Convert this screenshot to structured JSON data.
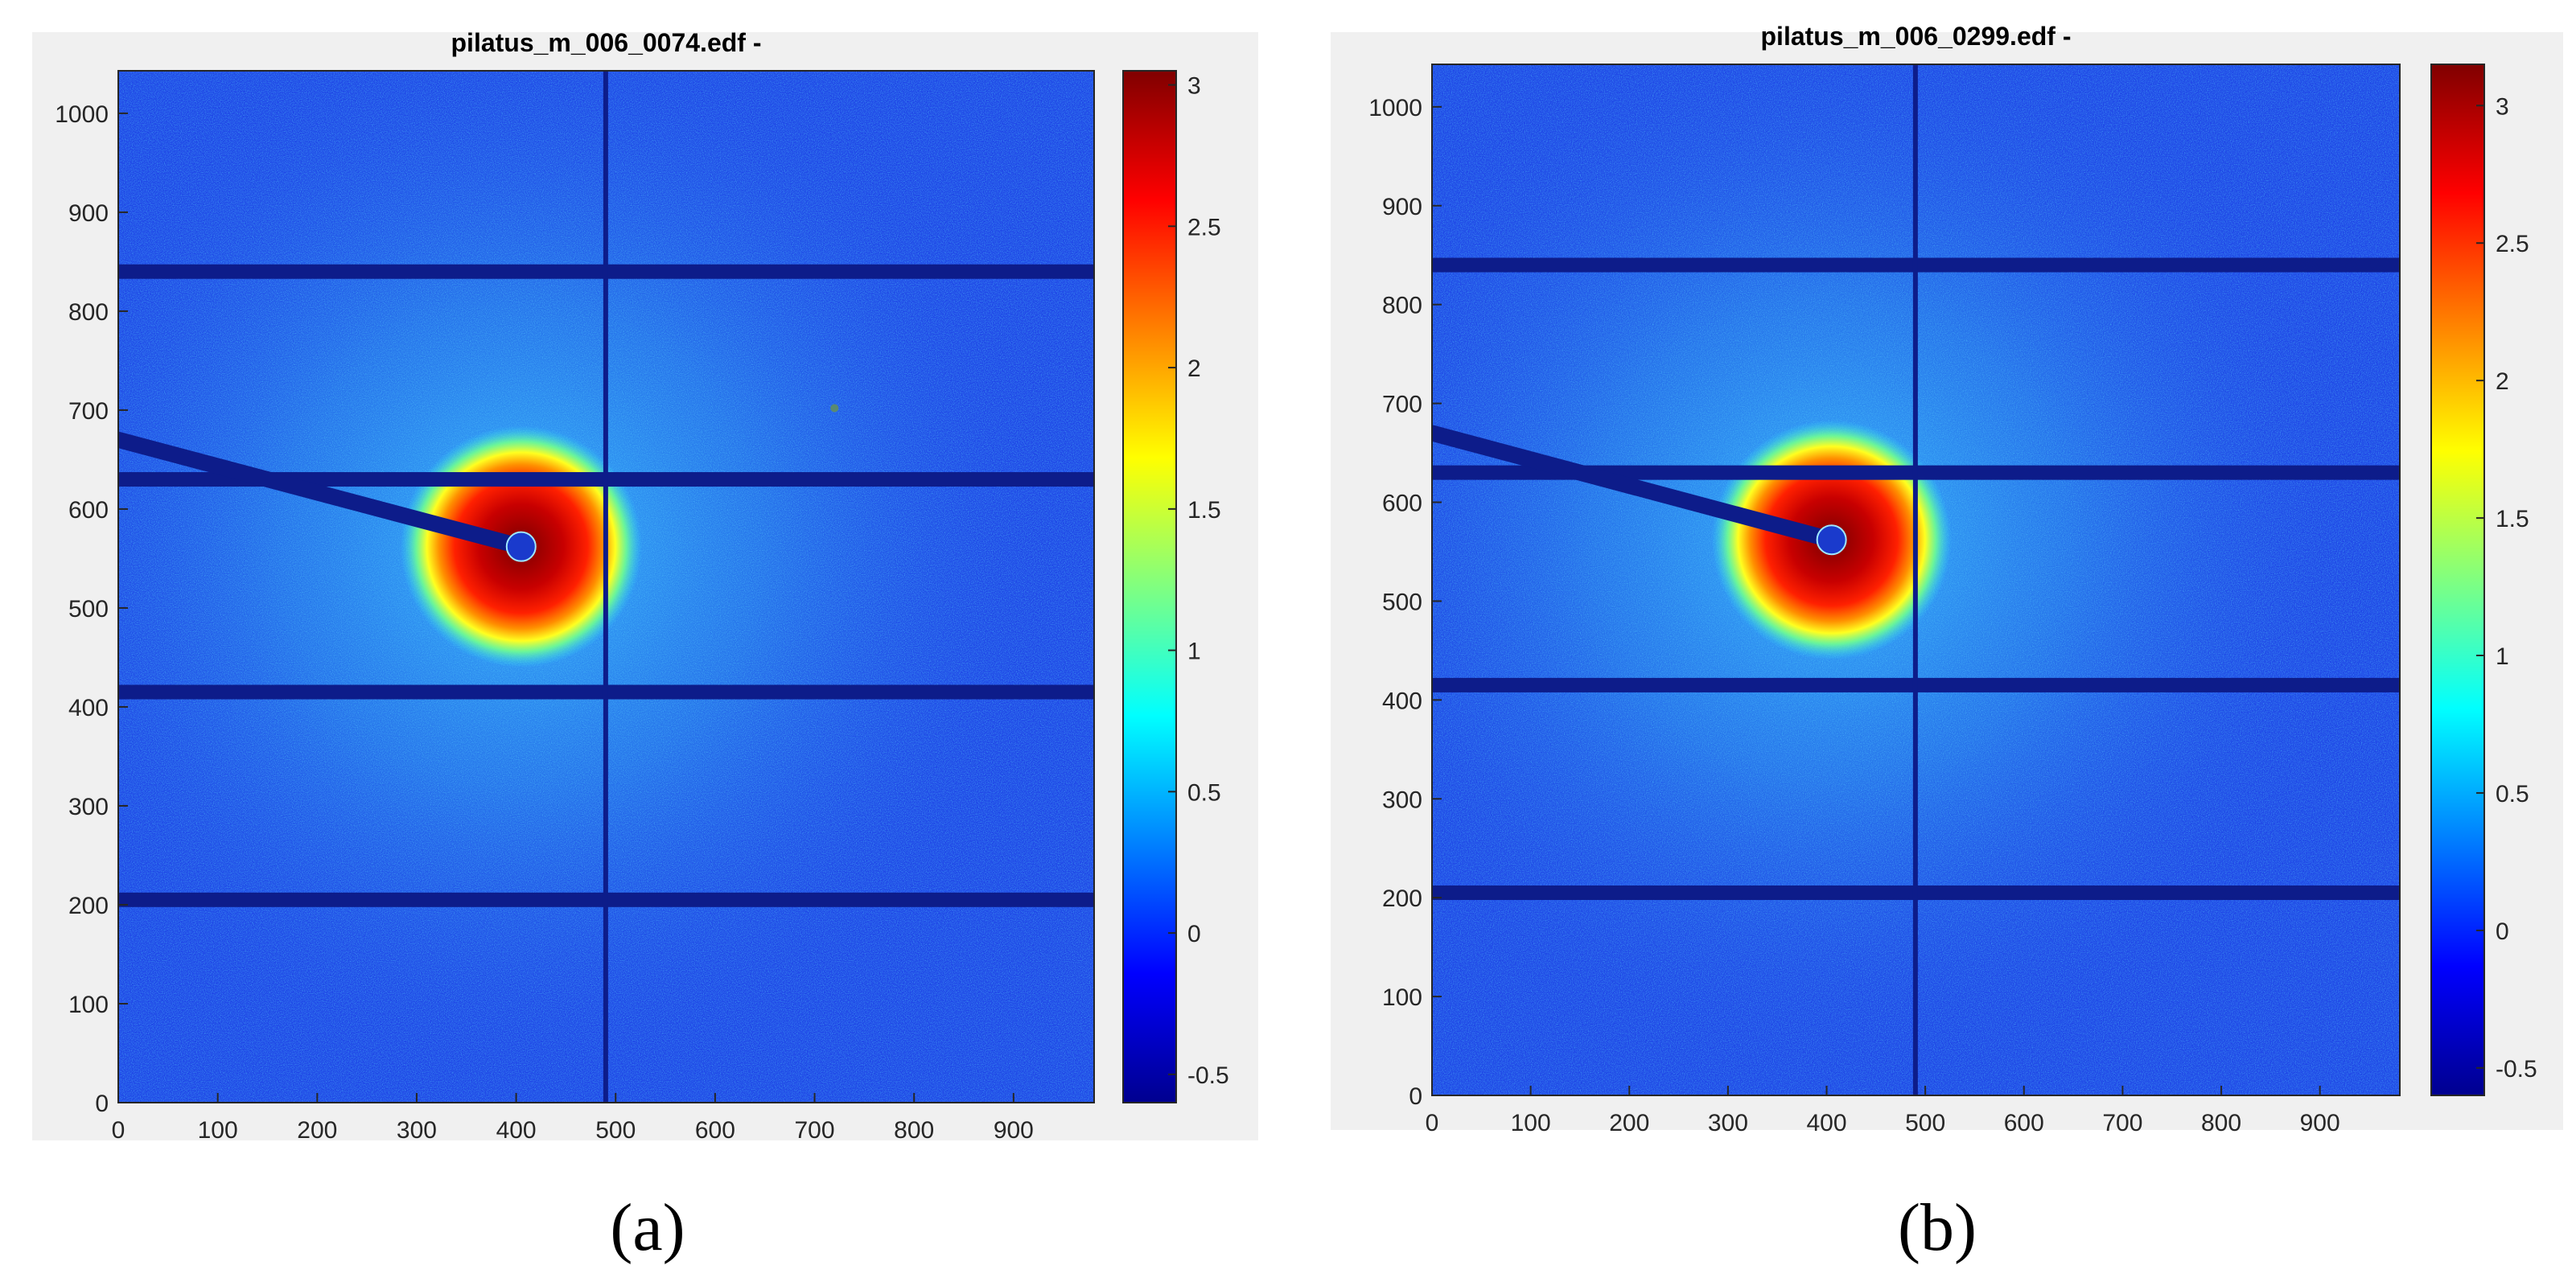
{
  "chart_data": [
    {
      "type": "heatmap",
      "label": "a",
      "title": "pilatus_m_006_0074.edf -",
      "xlim": [
        0,
        981
      ],
      "ylim": [
        0,
        1043
      ],
      "x_ticks": [
        "0",
        "100",
        "200",
        "300",
        "400",
        "500",
        "600",
        "700",
        "800",
        "900"
      ],
      "y_ticks": [
        "0",
        "100",
        "200",
        "300",
        "400",
        "500",
        "600",
        "700",
        "800",
        "900",
        "1000"
      ],
      "colorbar": {
        "range": [
          -0.6,
          3.05
        ],
        "tick_values": [
          -0.5,
          0,
          0.5,
          1,
          1.5,
          2,
          2.5,
          3
        ],
        "tick_labels": [
          "-0.5",
          "0",
          "0.5",
          "1",
          "1.5",
          "2",
          "2.5",
          "3"
        ],
        "colormap": "jet"
      },
      "beam_center": [
        405,
        562
      ],
      "ring_radius": 90,
      "beamstop": {
        "from": [
          0,
          670
        ],
        "to": [
          405,
          562
        ]
      },
      "gap_rows": [
        205,
        415,
        630,
        840
      ],
      "gap_cols": [
        490
      ],
      "hot_pixel": [
        720,
        702
      ],
      "background_color": "#1f47e6",
      "gap_color": "#0d1c8a"
    },
    {
      "type": "heatmap",
      "label": "b",
      "title": "pilatus_m_006_0299.edf -",
      "xlim": [
        0,
        981
      ],
      "ylim": [
        0,
        1043
      ],
      "x_ticks": [
        "0",
        "100",
        "200",
        "300",
        "400",
        "500",
        "600",
        "700",
        "800",
        "900"
      ],
      "y_ticks": [
        "0",
        "100",
        "200",
        "300",
        "400",
        "500",
        "600",
        "700",
        "800",
        "900",
        "1000"
      ],
      "colorbar": {
        "range": [
          -0.6,
          3.15
        ],
        "tick_values": [
          -0.5,
          0,
          0.5,
          1,
          1.5,
          2,
          2.5,
          3
        ],
        "tick_labels": [
          "-0.5",
          "0",
          "0.5",
          "1",
          "1.5",
          "2",
          "2.5",
          "3"
        ],
        "colormap": "jet"
      },
      "beam_center": [
        405,
        562
      ],
      "ring_radius": 90,
      "beamstop": {
        "from": [
          0,
          670
        ],
        "to": [
          405,
          562
        ]
      },
      "gap_rows": [
        205,
        415,
        630,
        840
      ],
      "gap_cols": [
        490
      ],
      "background_color": "#1f47e6",
      "gap_color": "#0d1c8a"
    }
  ],
  "labels": {
    "a": "(a)",
    "b": "(b)"
  }
}
